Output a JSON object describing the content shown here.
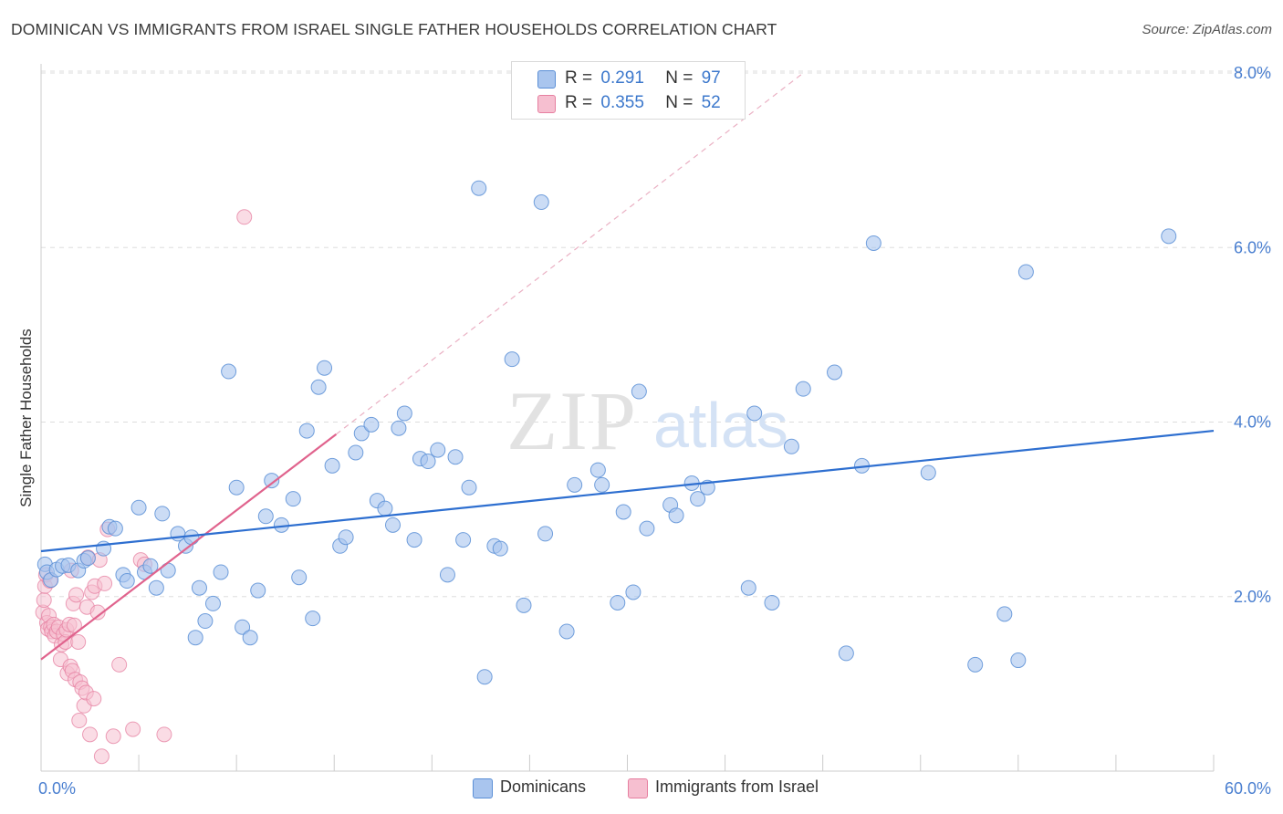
{
  "title": "DOMINICAN VS IMMIGRANTS FROM ISRAEL SINGLE FATHER HOUSEHOLDS CORRELATION CHART",
  "source": "Source: ZipAtlas.com",
  "watermark": {
    "zip": "ZIP",
    "atlas": "atlas"
  },
  "legend": {
    "rows": [
      {
        "r_label": "R =",
        "r_value": "0.291",
        "n_label": "N =",
        "n_value": "97"
      },
      {
        "r_label": "R =",
        "r_value": "0.355",
        "n_label": "N =",
        "n_value": "52"
      }
    ]
  },
  "bottom_legend": {
    "dominicans": "Dominicans",
    "israel": "Immigrants from Israel"
  },
  "colors": {
    "blue_fill": "#a9c5ee",
    "blue_stroke": "#5b8fd6",
    "blue_line": "#2e6fd0",
    "pink_fill": "#f6bfd0",
    "pink_stroke": "#e67fa0",
    "pink_line": "#e0638d",
    "axis_text": "#4a7fd0",
    "grid": "#dddddd"
  },
  "chart_data": {
    "type": "scatter",
    "title": "DOMINICAN VS IMMIGRANTS FROM ISRAEL SINGLE FATHER HOUSEHOLDS CORRELATION CHART",
    "xlabel": "",
    "ylabel": "Single Father Households",
    "xlim": [
      0,
      60
    ],
    "ylim": [
      0,
      8
    ],
    "x_tick_labels": [
      "0.0%",
      "60.0%"
    ],
    "y_ticks": [
      2,
      4,
      6,
      8
    ],
    "y_tick_labels": [
      "2.0%",
      "4.0%",
      "6.0%",
      "8.0%"
    ],
    "series": [
      {
        "name": "Dominicans",
        "r": 0.291,
        "n": 97,
        "trend": {
          "x": [
            0,
            60
          ],
          "y": [
            2.52,
            3.9
          ]
        },
        "points": [
          [
            0.2,
            2.37
          ],
          [
            0.3,
            2.28
          ],
          [
            0.5,
            2.19
          ],
          [
            0.8,
            2.31
          ],
          [
            1.1,
            2.35
          ],
          [
            1.4,
            2.36
          ],
          [
            1.9,
            2.3
          ],
          [
            2.2,
            2.41
          ],
          [
            2.4,
            2.44
          ],
          [
            3.2,
            2.55
          ],
          [
            3.5,
            2.8
          ],
          [
            3.8,
            2.78
          ],
          [
            4.2,
            2.25
          ],
          [
            4.4,
            2.18
          ],
          [
            5.0,
            3.02
          ],
          [
            5.3,
            2.28
          ],
          [
            5.6,
            2.35
          ],
          [
            5.9,
            2.1
          ],
          [
            6.2,
            2.95
          ],
          [
            6.5,
            2.3
          ],
          [
            7.0,
            2.72
          ],
          [
            7.4,
            2.58
          ],
          [
            7.7,
            2.68
          ],
          [
            8.1,
            2.1
          ],
          [
            8.4,
            1.72
          ],
          [
            8.8,
            1.92
          ],
          [
            9.2,
            2.28
          ],
          [
            7.9,
            1.53
          ],
          [
            9.6,
            4.58
          ],
          [
            10.0,
            3.25
          ],
          [
            10.3,
            1.65
          ],
          [
            10.7,
            1.53
          ],
          [
            11.1,
            2.07
          ],
          [
            11.5,
            2.92
          ],
          [
            11.8,
            3.33
          ],
          [
            12.3,
            2.82
          ],
          [
            12.9,
            3.12
          ],
          [
            13.2,
            2.22
          ],
          [
            13.6,
            3.9
          ],
          [
            13.9,
            1.75
          ],
          [
            14.2,
            4.4
          ],
          [
            14.5,
            4.62
          ],
          [
            14.9,
            3.5
          ],
          [
            15.3,
            2.58
          ],
          [
            15.6,
            2.68
          ],
          [
            16.1,
            3.65
          ],
          [
            16.4,
            3.87
          ],
          [
            16.9,
            3.97
          ],
          [
            17.2,
            3.1
          ],
          [
            17.6,
            3.01
          ],
          [
            18.0,
            2.82
          ],
          [
            18.3,
            3.93
          ],
          [
            18.6,
            4.1
          ],
          [
            19.1,
            2.65
          ],
          [
            19.4,
            3.58
          ],
          [
            19.8,
            3.55
          ],
          [
            20.3,
            3.68
          ],
          [
            20.8,
            2.25
          ],
          [
            21.2,
            3.6
          ],
          [
            21.6,
            2.65
          ],
          [
            21.9,
            3.25
          ],
          [
            22.4,
            6.68
          ],
          [
            22.7,
            1.08
          ],
          [
            23.2,
            2.58
          ],
          [
            23.5,
            2.55
          ],
          [
            24.1,
            4.72
          ],
          [
            24.7,
            1.9
          ],
          [
            25.6,
            6.52
          ],
          [
            25.8,
            2.72
          ],
          [
            26.9,
            1.6
          ],
          [
            27.3,
            3.28
          ],
          [
            28.5,
            3.45
          ],
          [
            28.7,
            3.28
          ],
          [
            29.5,
            1.93
          ],
          [
            29.8,
            2.97
          ],
          [
            30.3,
            2.05
          ],
          [
            30.6,
            4.35
          ],
          [
            31.0,
            2.78
          ],
          [
            32.2,
            3.05
          ],
          [
            32.5,
            2.93
          ],
          [
            33.3,
            3.3
          ],
          [
            33.6,
            3.12
          ],
          [
            34.1,
            3.25
          ],
          [
            36.2,
            2.1
          ],
          [
            36.5,
            4.1
          ],
          [
            37.4,
            1.93
          ],
          [
            38.4,
            3.72
          ],
          [
            39.0,
            4.38
          ],
          [
            40.6,
            4.57
          ],
          [
            41.2,
            1.35
          ],
          [
            42.0,
            3.5
          ],
          [
            42.6,
            6.05
          ],
          [
            45.4,
            3.42
          ],
          [
            47.8,
            1.22
          ],
          [
            49.3,
            1.8
          ],
          [
            50.0,
            1.27
          ],
          [
            50.4,
            5.72
          ],
          [
            57.7,
            6.13
          ]
        ]
      },
      {
        "name": "Immigrants from Israel",
        "r": 0.355,
        "n": 52,
        "trend": {
          "x": [
            0,
            15.1
          ],
          "y": [
            1.28,
            3.86
          ]
        },
        "trend_extension": {
          "x": [
            15.1,
            39.0
          ],
          "y": [
            3.86,
            8.0
          ]
        },
        "points": [
          [
            0.1,
            1.82
          ],
          [
            0.15,
            1.96
          ],
          [
            0.2,
            2.12
          ],
          [
            0.25,
            2.25
          ],
          [
            0.3,
            1.7
          ],
          [
            0.35,
            1.63
          ],
          [
            0.4,
            1.78
          ],
          [
            0.5,
            1.65
          ],
          [
            0.55,
            1.6
          ],
          [
            0.65,
            1.68
          ],
          [
            0.7,
            1.55
          ],
          [
            0.8,
            1.6
          ],
          [
            0.9,
            1.65
          ],
          [
            1.0,
            1.28
          ],
          [
            1.05,
            1.45
          ],
          [
            1.15,
            1.57
          ],
          [
            1.25,
            1.48
          ],
          [
            1.3,
            1.62
          ],
          [
            1.35,
            1.12
          ],
          [
            1.45,
            1.68
          ],
          [
            1.5,
            1.2
          ],
          [
            1.6,
            1.15
          ],
          [
            1.65,
            1.92
          ],
          [
            1.7,
            1.67
          ],
          [
            1.75,
            1.05
          ],
          [
            1.8,
            2.02
          ],
          [
            1.9,
            1.48
          ],
          [
            1.95,
            0.58
          ],
          [
            2.0,
            1.02
          ],
          [
            2.1,
            0.95
          ],
          [
            2.2,
            0.75
          ],
          [
            2.3,
            0.9
          ],
          [
            2.35,
            1.88
          ],
          [
            2.4,
            2.45
          ],
          [
            2.5,
            0.42
          ],
          [
            2.6,
            2.05
          ],
          [
            2.7,
            0.83
          ],
          [
            2.75,
            2.12
          ],
          [
            2.9,
            1.82
          ],
          [
            3.0,
            2.42
          ],
          [
            3.1,
            0.17
          ],
          [
            3.25,
            2.15
          ],
          [
            3.4,
            2.77
          ],
          [
            3.7,
            0.4
          ],
          [
            4.0,
            1.22
          ],
          [
            4.7,
            0.48
          ],
          [
            5.1,
            2.42
          ],
          [
            5.3,
            2.37
          ],
          [
            6.3,
            0.42
          ],
          [
            10.4,
            6.35
          ],
          [
            0.45,
            2.18
          ],
          [
            1.55,
            2.3
          ]
        ]
      }
    ]
  }
}
